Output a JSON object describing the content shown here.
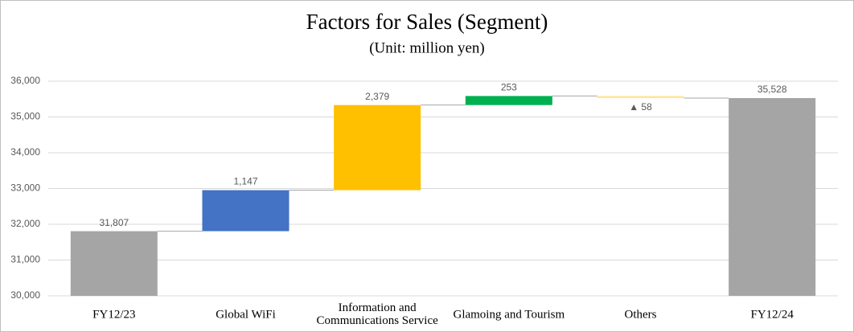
{
  "chart_data": {
    "type": "waterfall",
    "title": "Factors for Sales (Segment)",
    "subtitle": "(Unit: million yen)",
    "categories": [
      "FY12/23",
      "Global WiFi",
      "Information and Communications Service",
      "Glamoing and Tourism",
      "Others",
      "FY12/24"
    ],
    "values": [
      31807,
      1147,
      2379,
      253,
      -58,
      35528
    ],
    "value_labels": [
      "31,807",
      "1,147",
      "2,379",
      "253",
      "▲ 58",
      "35,528"
    ],
    "measure": [
      "total",
      "relative",
      "relative",
      "relative",
      "relative",
      "total"
    ],
    "colors": [
      "#a5a5a5",
      "#4472c4",
      "#ffc000",
      "#00b050",
      "#ffe699",
      "#a5a5a5"
    ],
    "ylim": [
      30000,
      36000
    ],
    "yticks": [
      {
        "value": 30000,
        "label": "30,000"
      },
      {
        "value": 31000,
        "label": "31,000"
      },
      {
        "value": 32000,
        "label": "32,000"
      },
      {
        "value": 33000,
        "label": "33,000"
      },
      {
        "value": 34000,
        "label": "34,000"
      },
      {
        "value": 35000,
        "label": "35,000"
      },
      {
        "value": 36000,
        "label": "36,000"
      }
    ],
    "grid": true
  }
}
